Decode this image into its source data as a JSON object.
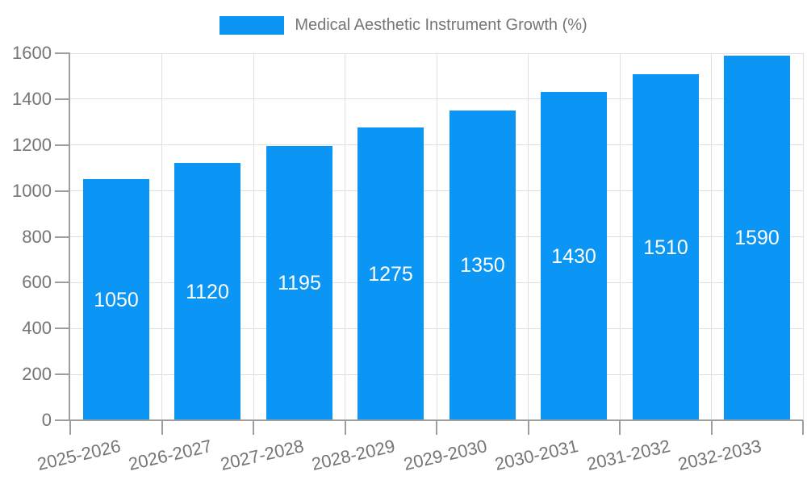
{
  "chart_data": {
    "type": "bar",
    "series_name": "Medical Aesthetic Instrument Growth (%)",
    "categories": [
      "2025-2026",
      "2026-2027",
      "2027-2028",
      "2028-2029",
      "2029-2030",
      "2030-2031",
      "2031-2032",
      "2032-2033"
    ],
    "values": [
      1050,
      1120,
      1195,
      1275,
      1350,
      1430,
      1510,
      1590
    ],
    "ylim": [
      0,
      1600
    ],
    "y_ticks": [
      0,
      200,
      400,
      600,
      800,
      1000,
      1200,
      1400,
      1600
    ],
    "grid": true,
    "legend_position": "top-center",
    "value_labels": "inside-center",
    "xlabel": "",
    "ylabel": "",
    "colors": {
      "bar": "#0B96F5",
      "grid": "#E0E0E0",
      "axis": "#9E9E9E",
      "tick_text": "#757575",
      "value_text": "#FFFFFF",
      "background": "#FFFFFF"
    }
  }
}
